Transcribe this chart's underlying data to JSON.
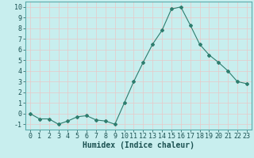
{
  "x": [
    0,
    1,
    2,
    3,
    4,
    5,
    6,
    7,
    8,
    9,
    10,
    11,
    12,
    13,
    14,
    15,
    16,
    17,
    18,
    19,
    20,
    21,
    22,
    23
  ],
  "y": [
    0,
    -0.5,
    -0.5,
    -1,
    -0.7,
    -0.3,
    -0.2,
    -0.6,
    -0.7,
    -1,
    1,
    3,
    4.8,
    6.5,
    7.8,
    9.8,
    10,
    8.3,
    6.5,
    5.5,
    4.8,
    4,
    3,
    2.8
  ],
  "line_color": "#2e7d6e",
  "marker": "D",
  "marker_size": 2.0,
  "bg_color": "#c8eeee",
  "grid_color": "#e8c8c8",
  "xlabel": "Humidex (Indice chaleur)",
  "xlabel_fontsize": 7,
  "tick_fontsize": 6,
  "xlim": [
    -0.5,
    23.5
  ],
  "ylim": [
    -1.5,
    10.5
  ],
  "yticks": [
    -1,
    0,
    1,
    2,
    3,
    4,
    5,
    6,
    7,
    8,
    9,
    10
  ],
  "xticks": [
    0,
    1,
    2,
    3,
    4,
    5,
    6,
    7,
    8,
    9,
    10,
    11,
    12,
    13,
    14,
    15,
    16,
    17,
    18,
    19,
    20,
    21,
    22,
    23
  ]
}
